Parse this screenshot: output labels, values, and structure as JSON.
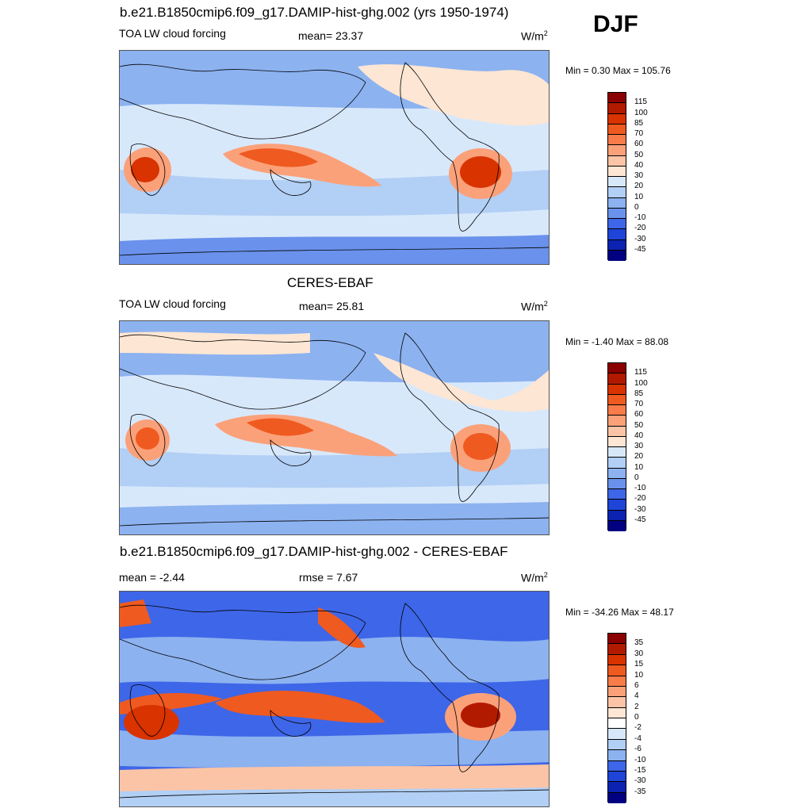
{
  "season": "DJF",
  "panels": [
    {
      "title": "b.e21.B1850cmip6.f09_g17.DAMIP-hist-ghg.002 (yrs 1950-1974)",
      "left_label": "TOA LW cloud forcing",
      "center_label": "mean=  23.37",
      "units": "W/m",
      "units_exp": "2",
      "minmax": "Min =   0.30 Max = 105.76",
      "colorbar": {
        "ticks": [
          "115",
          "100",
          "85",
          "70",
          "60",
          "50",
          "40",
          "30",
          "20",
          "10",
          "0",
          "-10",
          "-20",
          "-30",
          "-45"
        ],
        "colors": [
          "#8b0000",
          "#b21a00",
          "#d93300",
          "#ef5a20",
          "#f77c4a",
          "#fba17a",
          "#fcc4a6",
          "#fde6d3",
          "#d8e8fb",
          "#b2cff5",
          "#8cb2f0",
          "#6a92ec",
          "#3e66e8",
          "#1f44d8",
          "#0b23b0",
          "#000080"
        ]
      }
    },
    {
      "title": "CERES-EBAF",
      "left_label": "TOA LW cloud forcing",
      "center_label": "mean=  25.81",
      "units": "W/m",
      "units_exp": "2",
      "minmax": "Min =  -1.40 Max =  88.08",
      "colorbar": {
        "ticks": [
          "115",
          "100",
          "85",
          "70",
          "60",
          "50",
          "40",
          "30",
          "20",
          "10",
          "0",
          "-10",
          "-20",
          "-30",
          "-45"
        ],
        "colors": [
          "#8b0000",
          "#b21a00",
          "#d93300",
          "#ef5a20",
          "#f77c4a",
          "#fba17a",
          "#fcc4a6",
          "#fde6d3",
          "#d8e8fb",
          "#b2cff5",
          "#8cb2f0",
          "#6a92ec",
          "#3e66e8",
          "#1f44d8",
          "#0b23b0",
          "#000080"
        ]
      }
    },
    {
      "title": "b.e21.B1850cmip6.f09_g17.DAMIP-hist-ghg.002 - CERES-EBAF",
      "left_label": "mean =  -2.44",
      "center_label": "rmse =   7.67",
      "units": "W/m",
      "units_exp": "2",
      "minmax": "Min = -34.26 Max =  48.17",
      "colorbar": {
        "ticks": [
          "35",
          "30",
          "15",
          "10",
          "6",
          "4",
          "2",
          "0",
          "-2",
          "-4",
          "-6",
          "-10",
          "-15",
          "-30",
          "-35"
        ],
        "colors": [
          "#8b0000",
          "#b21a00",
          "#d93300",
          "#ef5a20",
          "#f77c4a",
          "#fba17a",
          "#fcc4a6",
          "#fde6d3",
          "#ffffff",
          "#d8e8fb",
          "#b2cff5",
          "#8cb2f0",
          "#3e66e8",
          "#1f44d8",
          "#0b23b0",
          "#000080"
        ]
      }
    }
  ]
}
